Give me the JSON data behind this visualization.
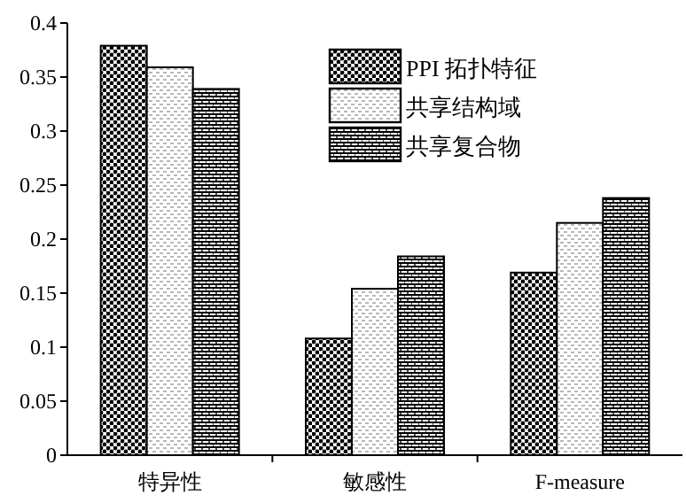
{
  "chart_data": {
    "type": "bar",
    "categories": [
      "特异性",
      "敏感性",
      "F-measure"
    ],
    "series": [
      {
        "name": "PPI 拓扑特征",
        "color": "#000000",
        "values": [
          0.379,
          0.108,
          0.169
        ]
      },
      {
        "name": "共享结构域",
        "color": "#000000",
        "values": [
          0.359,
          0.154,
          0.215
        ]
      },
      {
        "name": "共享复合物",
        "color": "#000000",
        "values": [
          0.339,
          0.184,
          0.238
        ]
      }
    ],
    "ylim": [
      0,
      0.4
    ],
    "yticks": [
      0,
      0.05,
      0.1,
      0.15,
      0.2,
      0.25,
      0.3,
      0.35,
      0.4
    ],
    "grid": false,
    "legend": "top right"
  }
}
